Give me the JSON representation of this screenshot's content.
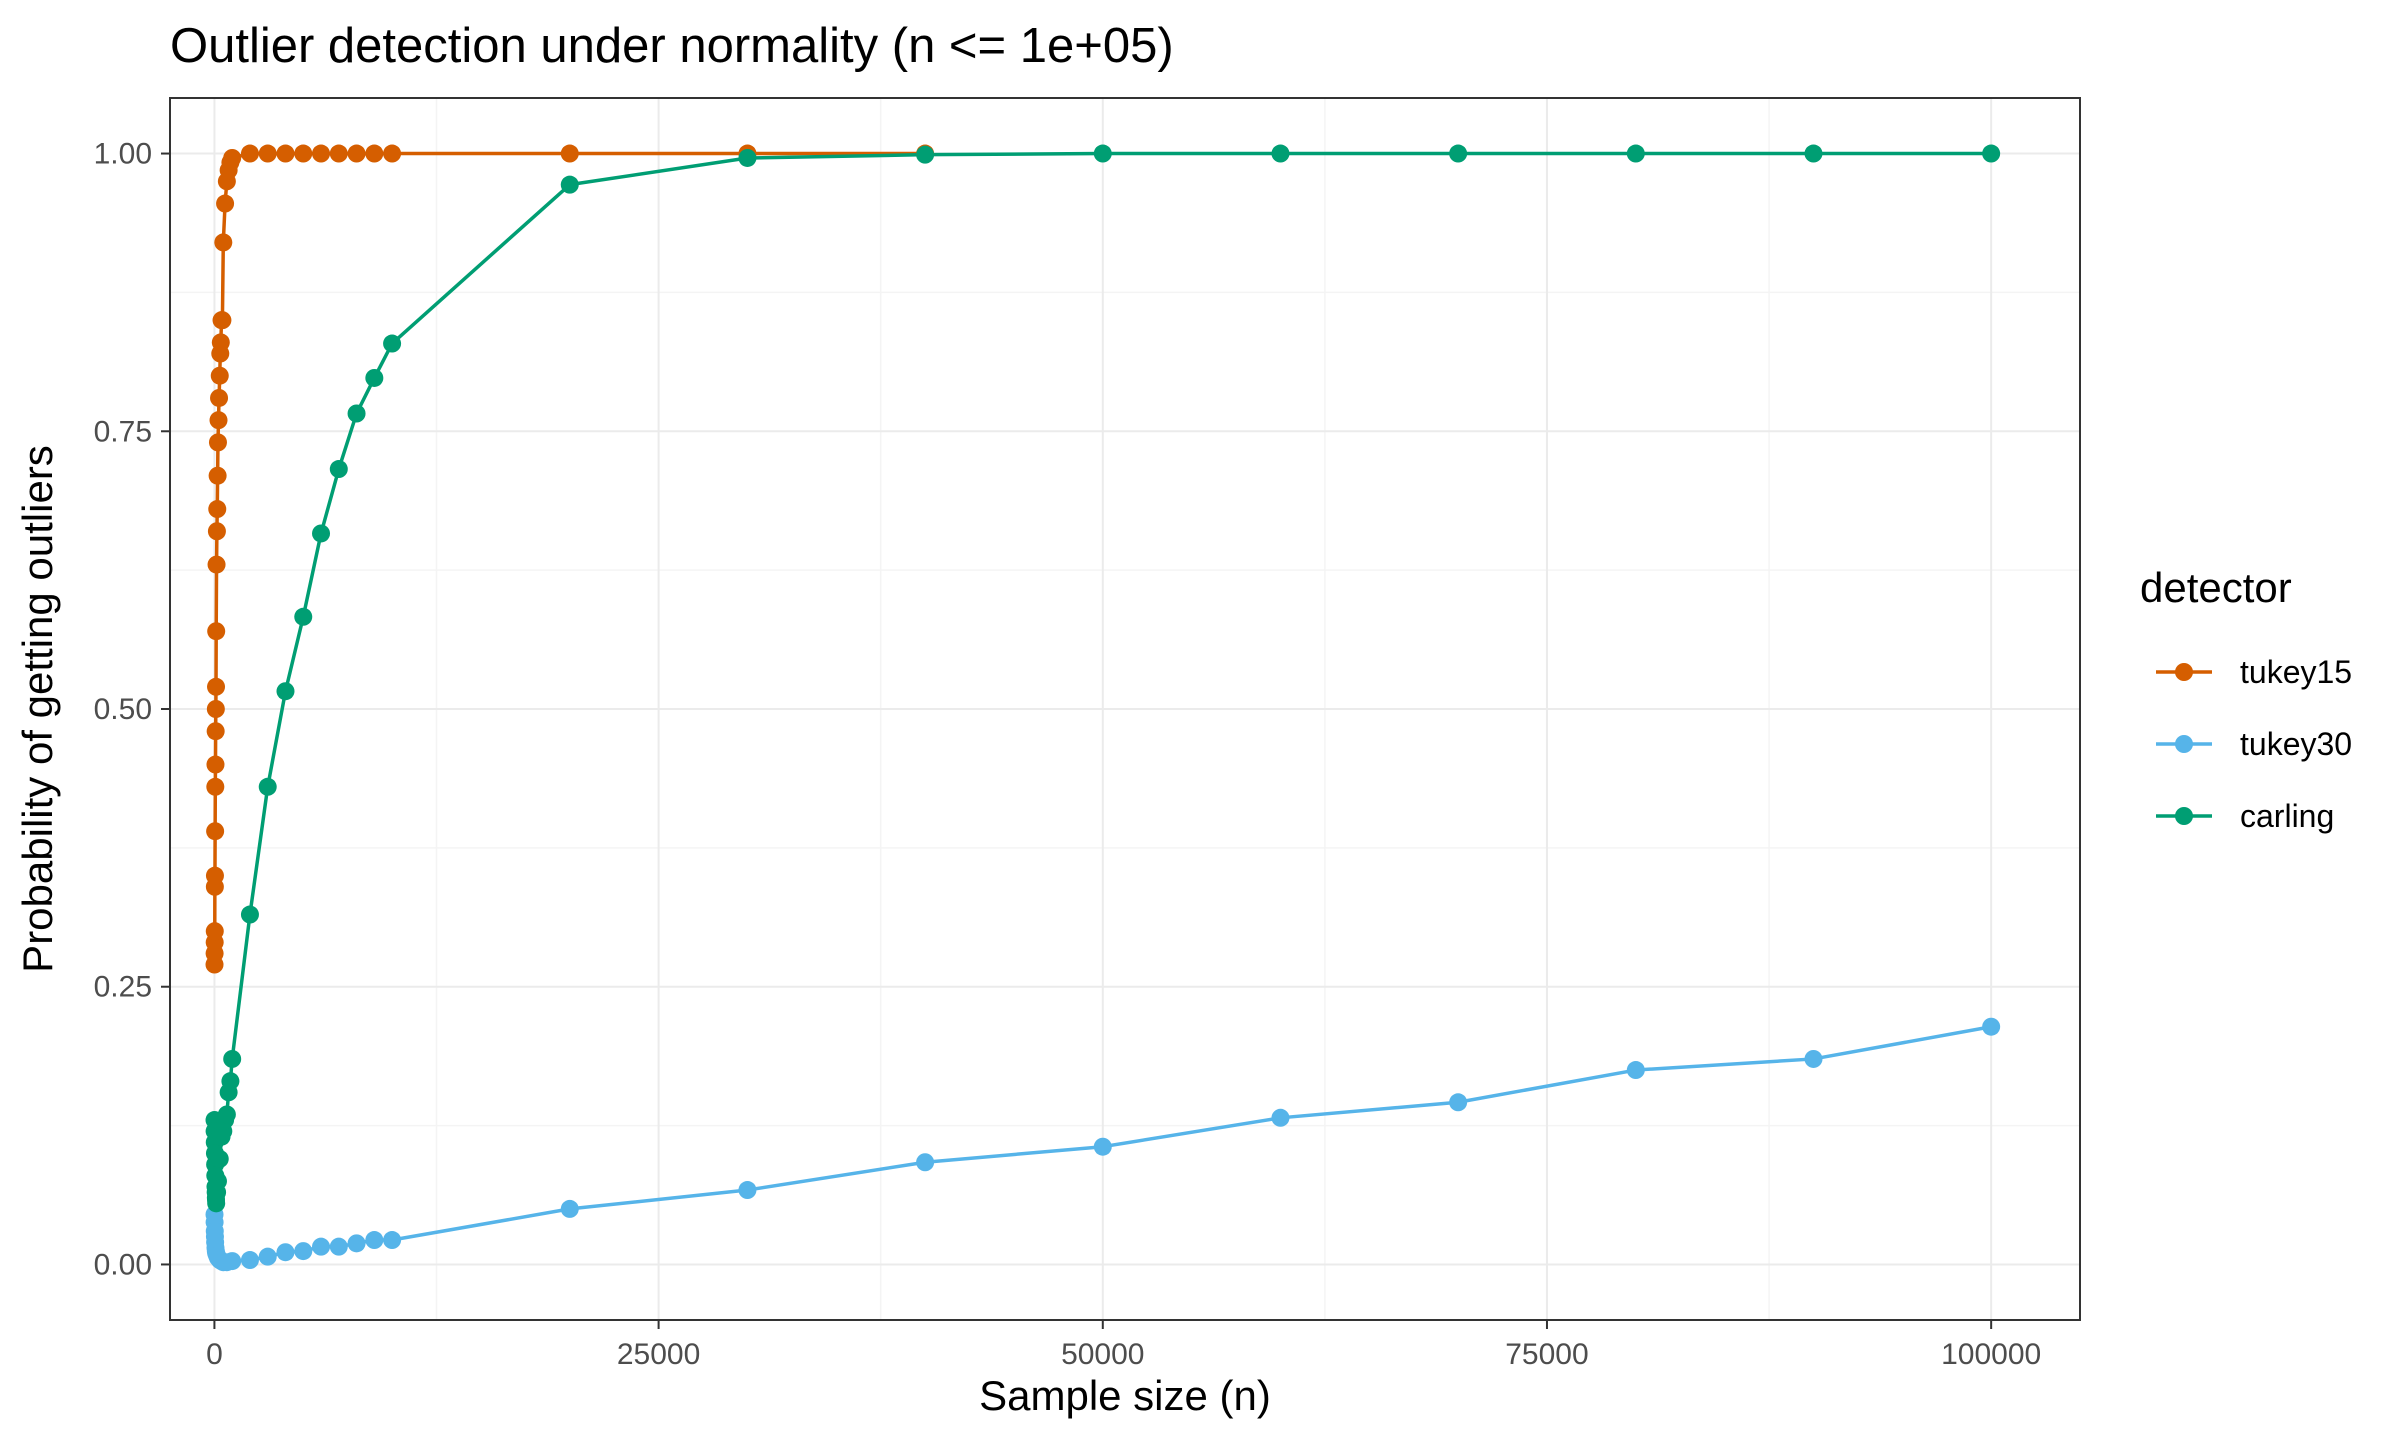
{
  "chart_data": {
    "type": "line",
    "title": "Outlier detection under normality (n <= 1e+05)",
    "xlabel": "Sample size (n)",
    "ylabel": "Probability of getting outliers",
    "xlim": [
      -2500,
      105000
    ],
    "ylim": [
      -0.05,
      1.05
    ],
    "x_ticks": [
      0,
      25000,
      50000,
      75000,
      100000
    ],
    "x_tick_labels": [
      "0",
      "25000",
      "50000",
      "75000",
      "100000"
    ],
    "y_ticks": [
      0,
      0.25,
      0.5,
      0.75,
      1.0
    ],
    "y_tick_labels": [
      "0.00",
      "0.25",
      "0.50",
      "0.75",
      "1.00"
    ],
    "grid": true,
    "legend": {
      "title": "detector",
      "position": "right"
    },
    "series": [
      {
        "name": "tukey15",
        "color": "#D55E00",
        "points": [
          [
            5,
            0.27
          ],
          [
            10,
            0.28
          ],
          [
            15,
            0.29
          ],
          [
            20,
            0.3
          ],
          [
            25,
            0.34
          ],
          [
            30,
            0.35
          ],
          [
            40,
            0.39
          ],
          [
            50,
            0.43
          ],
          [
            60,
            0.45
          ],
          [
            70,
            0.48
          ],
          [
            80,
            0.5
          ],
          [
            90,
            0.52
          ],
          [
            100,
            0.57
          ],
          [
            120,
            0.63
          ],
          [
            140,
            0.66
          ],
          [
            160,
            0.68
          ],
          [
            180,
            0.71
          ],
          [
            200,
            0.74
          ],
          [
            230,
            0.76
          ],
          [
            260,
            0.78
          ],
          [
            300,
            0.8
          ],
          [
            330,
            0.82
          ],
          [
            360,
            0.83
          ],
          [
            400,
            0.85
          ],
          [
            450,
            0.85
          ],
          [
            500,
            0.92
          ],
          [
            600,
            0.955
          ],
          [
            700,
            0.975
          ],
          [
            800,
            0.985
          ],
          [
            900,
            0.992
          ],
          [
            1000,
            0.996
          ],
          [
            2000,
            1.0
          ],
          [
            3000,
            1.0
          ],
          [
            4000,
            1.0
          ],
          [
            5000,
            1.0
          ],
          [
            6000,
            1.0
          ],
          [
            7000,
            1.0
          ],
          [
            8000,
            1.0
          ],
          [
            9000,
            1.0
          ],
          [
            10000,
            1.0
          ],
          [
            20000,
            1.0
          ],
          [
            30000,
            1.0
          ],
          [
            40000,
            1.0
          ]
        ]
      },
      {
        "name": "tukey30",
        "color": "#56B4E9",
        "points": [
          [
            5,
            0.045
          ],
          [
            10,
            0.038
          ],
          [
            20,
            0.03
          ],
          [
            30,
            0.025
          ],
          [
            40,
            0.02
          ],
          [
            60,
            0.015
          ],
          [
            80,
            0.012
          ],
          [
            100,
            0.01
          ],
          [
            150,
            0.008
          ],
          [
            200,
            0.006
          ],
          [
            300,
            0.004
          ],
          [
            400,
            0.003
          ],
          [
            500,
            0.002
          ],
          [
            700,
            0.002
          ],
          [
            1000,
            0.003
          ],
          [
            2000,
            0.004
          ],
          [
            3000,
            0.007
          ],
          [
            4000,
            0.011
          ],
          [
            5000,
            0.012
          ],
          [
            6000,
            0.016
          ],
          [
            7000,
            0.016
          ],
          [
            8000,
            0.019
          ],
          [
            9000,
            0.022
          ],
          [
            10000,
            0.022
          ],
          [
            20000,
            0.05
          ],
          [
            30000,
            0.067
          ],
          [
            40000,
            0.092
          ],
          [
            50000,
            0.106
          ],
          [
            60000,
            0.132
          ],
          [
            70000,
            0.146
          ],
          [
            80000,
            0.175
          ],
          [
            90000,
            0.185
          ],
          [
            100000,
            0.214
          ]
        ]
      },
      {
        "name": "carling",
        "color": "#009E73",
        "points": [
          [
            5,
            0.13
          ],
          [
            10,
            0.12
          ],
          [
            20,
            0.11
          ],
          [
            30,
            0.1
          ],
          [
            40,
            0.09
          ],
          [
            50,
            0.08
          ],
          [
            60,
            0.07
          ],
          [
            70,
            0.065
          ],
          [
            80,
            0.06
          ],
          [
            90,
            0.058
          ],
          [
            100,
            0.055
          ],
          [
            150,
            0.065
          ],
          [
            200,
            0.075
          ],
          [
            300,
            0.095
          ],
          [
            400,
            0.115
          ],
          [
            500,
            0.12
          ],
          [
            600,
            0.13
          ],
          [
            700,
            0.135
          ],
          [
            800,
            0.155
          ],
          [
            900,
            0.165
          ],
          [
            1000,
            0.185
          ],
          [
            2000,
            0.315
          ],
          [
            3000,
            0.43
          ],
          [
            4000,
            0.516
          ],
          [
            5000,
            0.583
          ],
          [
            6000,
            0.658
          ],
          [
            7000,
            0.716
          ],
          [
            8000,
            0.766
          ],
          [
            9000,
            0.798
          ],
          [
            10000,
            0.829
          ],
          [
            20000,
            0.972
          ],
          [
            30000,
            0.996
          ],
          [
            40000,
            0.999
          ],
          [
            50000,
            1.0
          ],
          [
            60000,
            1.0
          ],
          [
            70000,
            1.0
          ],
          [
            80000,
            1.0
          ],
          [
            90000,
            1.0
          ],
          [
            100000,
            1.0
          ]
        ]
      }
    ]
  }
}
